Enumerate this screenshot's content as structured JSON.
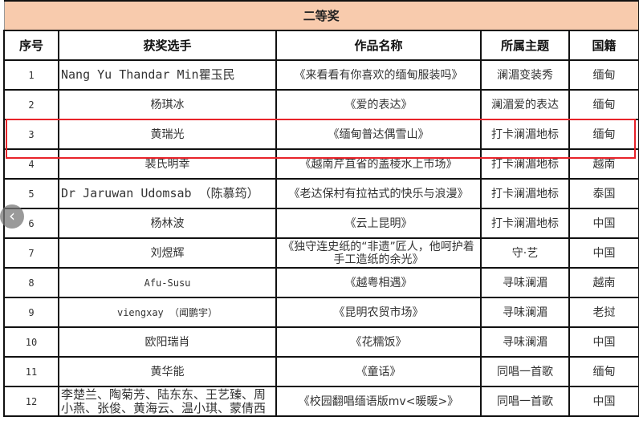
{
  "title": "二等奖",
  "headers": [
    "序号",
    "获奖选手",
    "作品名称",
    "所属主题",
    "国籍"
  ],
  "rows": [
    {
      "no": "1",
      "name": "Nang Yu Thandar Min瞿玉民",
      "work": "《来看看有你喜欢的缅甸服装吗》",
      "theme": "澜湄变装秀",
      "country": "缅甸"
    },
    {
      "no": "2",
      "name": "杨琪冰",
      "work": "《爱的表达》",
      "theme": "澜湄爱的表达",
      "country": "缅甸"
    },
    {
      "no": "3",
      "name": "黄瑞光",
      "work": "《缅甸普达偶雪山》",
      "theme": "打卡澜湄地标",
      "country": "缅甸"
    },
    {
      "no": "4",
      "name": "裴氏明幸",
      "work": "《越南芹苴省的盖棱水上市场》",
      "theme": "打卡澜湄地标",
      "country": "越南"
    },
    {
      "no": "5",
      "name": "Dr Jaruwan Udomsab （陈慕筠）",
      "work": "《老达保村有拉祜式的快乐与浪漫》",
      "theme": "打卡澜湄地标",
      "country": "泰国"
    },
    {
      "no": "6",
      "name": "杨林波",
      "work": "《云上昆明》",
      "theme": "打卡澜湄地标",
      "country": "中国"
    },
    {
      "no": "7",
      "name": "刘煜辉",
      "work": "《独守连史纸的“非遗”匠人，他呵护着手工造纸的余光》",
      "theme": "守·艺",
      "country": "中国"
    },
    {
      "no": "8",
      "name": "Afu-Susu",
      "work": "《越粤相遇》",
      "theme": "寻味澜湄",
      "country": "越南"
    },
    {
      "no": "9",
      "name": "viengxay （闻鹏宇）",
      "work": "《昆明农贸市场》",
      "theme": "寻味澜湄",
      "country": "老挝"
    },
    {
      "no": "10",
      "name": "欧阳瑞肖",
      "work": "《花糯饭》",
      "theme": "寻味澜湄",
      "country": "中国"
    },
    {
      "no": "11",
      "name": "黄华能",
      "work": "《童话》",
      "theme": "同唱一首歌",
      "country": "缅甸"
    },
    {
      "no": "12",
      "name": "李楚兰、陶菊芳、陆东东、王艺臻、周小燕、张俊、黄海云、温小琪、蒙倩西",
      "work": "《校园翻唱缅语版mv<暖暖>》",
      "theme": "同唱一首歌",
      "country": "中国"
    }
  ],
  "highlighted_row": "3",
  "highlight_color": "#e8232a",
  "title_bg": "#f8cbad",
  "nav": {
    "icon": "chevron-left-icon",
    "glyph": "‹"
  }
}
